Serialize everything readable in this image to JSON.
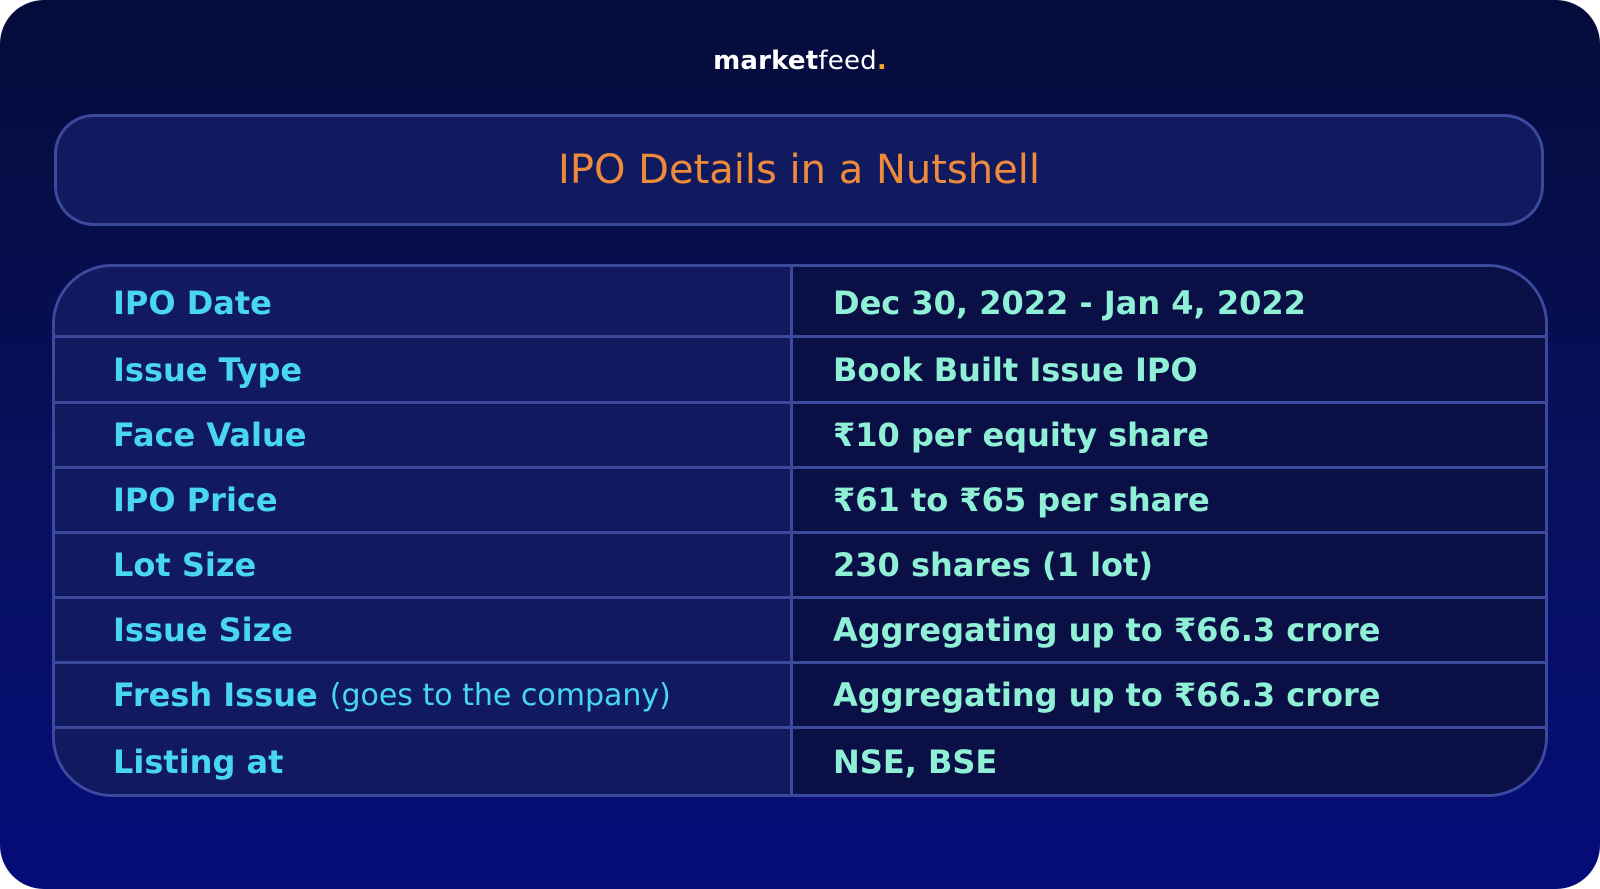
{
  "brand": {
    "name_bold": "market",
    "name_light": "feed",
    "dot": ".",
    "accent_color": "#f6a623"
  },
  "title": "IPO Details in a Nutshell",
  "colors": {
    "title": "#ee8a3b",
    "label": "#49d6f0",
    "value": "#8ff0d6",
    "border": "#3b4a9c"
  },
  "rows": [
    {
      "label": "IPO Date",
      "note": "",
      "value": "Dec 30, 2022 - Jan 4, 2022"
    },
    {
      "label": "Issue Type",
      "note": "",
      "value": "Book Built Issue IPO"
    },
    {
      "label": "Face Value",
      "note": "",
      "value": "₹10 per equity share"
    },
    {
      "label": "IPO Price",
      "note": "",
      "value": "₹61 to ₹65 per share"
    },
    {
      "label": "Lot Size",
      "note": "",
      "value": "230 shares (1 lot)"
    },
    {
      "label": "Issue Size",
      "note": "",
      "value": "Aggregating up to ₹66.3 crore"
    },
    {
      "label": "Fresh Issue",
      "note": "(goes to the company)",
      "value": "Aggregating up to ₹66.3 crore"
    },
    {
      "label": "Listing at",
      "note": "",
      "value": "NSE, BSE"
    }
  ]
}
